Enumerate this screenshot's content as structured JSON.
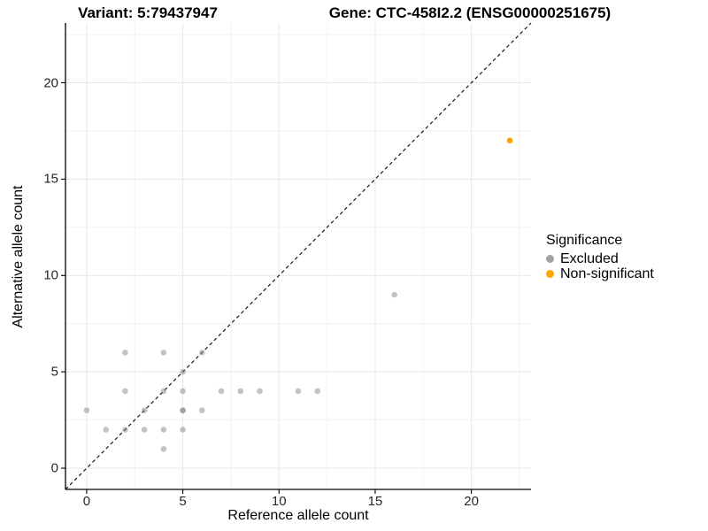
{
  "titles": {
    "left": "Variant: 5:79437947",
    "right": "Gene: CTC-458I2.2 (ENSG00000251675)"
  },
  "axes": {
    "x_label": "Reference allele count",
    "y_label": "Alternative allele count",
    "x_ticks": [
      0,
      5,
      10,
      15,
      20
    ],
    "y_ticks": [
      0,
      5,
      10,
      15,
      20
    ]
  },
  "legend": {
    "title": "Significance",
    "items": [
      {
        "label": "Excluded",
        "color": "#A3A3A3"
      },
      {
        "label": "Non-significant",
        "color": "#FFA500"
      }
    ]
  },
  "style_colors": {
    "grid_major": "#E9E9E9",
    "grid_minor": "#F1F1F1",
    "axis_line": "#000000",
    "diagonal_line": "#1A1A1A"
  },
  "chart_data": {
    "type": "scatter",
    "title_left": "Variant: 5:79437947",
    "title_right": "Gene: CTC-458I2.2 (ENSG00000251675)",
    "xlabel": "Reference allele count",
    "ylabel": "Alternative allele count",
    "xlim": [
      0,
      22
    ],
    "ylim": [
      0,
      22
    ],
    "expand_mult": 0.05,
    "grid": "on",
    "legend_position": "right",
    "reference_line": {
      "type": "abline",
      "slope": 1,
      "intercept": 0,
      "dashed": true
    },
    "series": [
      {
        "name": "Excluded",
        "color": "#808080",
        "opacity": 0.47,
        "points": [
          [
            0,
            3
          ],
          [
            1,
            2
          ],
          [
            2,
            2
          ],
          [
            2,
            4
          ],
          [
            2,
            6
          ],
          [
            3,
            2
          ],
          [
            3,
            3
          ],
          [
            4,
            1
          ],
          [
            4,
            2
          ],
          [
            4,
            4
          ],
          [
            4,
            6
          ],
          [
            5,
            2
          ],
          [
            5,
            3
          ],
          [
            5,
            3
          ],
          [
            5,
            4
          ],
          [
            5,
            5
          ],
          [
            6,
            3
          ],
          [
            6,
            6
          ],
          [
            7,
            4
          ],
          [
            8,
            4
          ],
          [
            9,
            4
          ],
          [
            11,
            4
          ],
          [
            12,
            4
          ],
          [
            16,
            9
          ]
        ]
      },
      {
        "name": "Non-significant",
        "color": "#FFA500",
        "opacity": 1,
        "points": [
          [
            22,
            17
          ]
        ]
      }
    ]
  }
}
